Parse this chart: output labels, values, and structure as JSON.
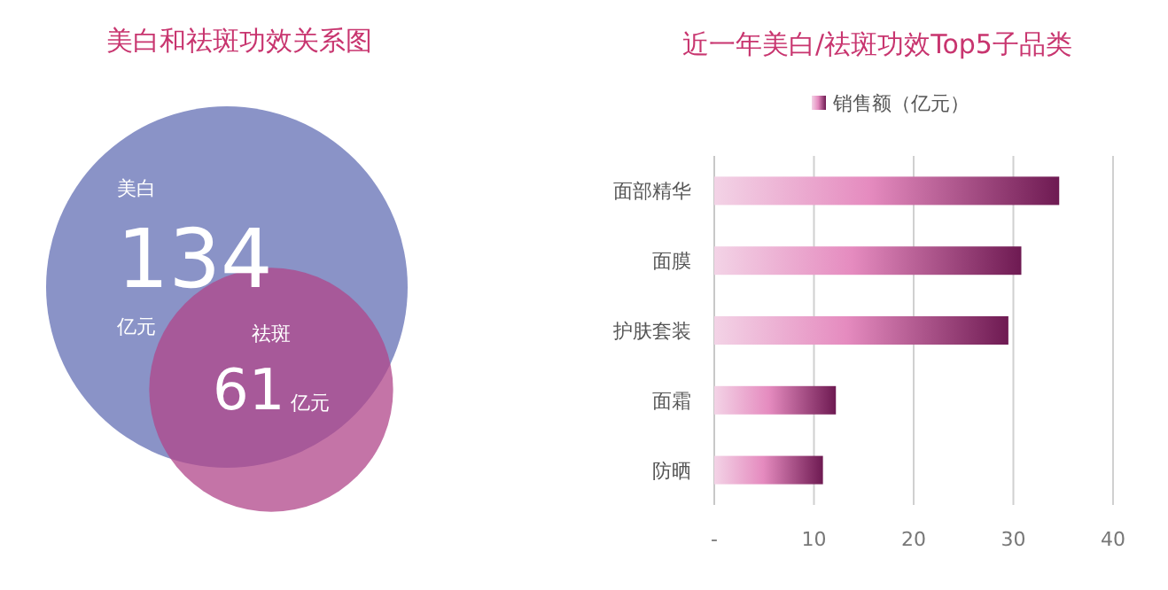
{
  "chart_data": [
    {
      "type": "other",
      "title": "美白和祛斑功效关系图",
      "categories": [
        "美白",
        "祛斑"
      ],
      "values": [
        134,
        61
      ],
      "colors": [
        "#8a93c7",
        "#b0458a"
      ],
      "data_labels": true,
      "annotations": [
        "亿元",
        "亿元"
      ]
    },
    {
      "type": "bar",
      "title": "近一年美白/祛斑功效Top5子品类",
      "orientation": "horizontal",
      "categories": [
        "面部精华",
        "面膜",
        "护肤套装",
        "面霜",
        "防晒"
      ],
      "series": [
        {
          "name": "销售额（亿元）",
          "color": "#6e1a52",
          "values": [
            34.6,
            30.8,
            29.5,
            12.2,
            10.9
          ]
        }
      ],
      "xlim": [
        0,
        40
      ],
      "xticks": [
        {
          "value": 0,
          "label": "-"
        },
        10,
        20,
        30,
        40
      ],
      "grid": "x",
      "legend": "top"
    }
  ]
}
